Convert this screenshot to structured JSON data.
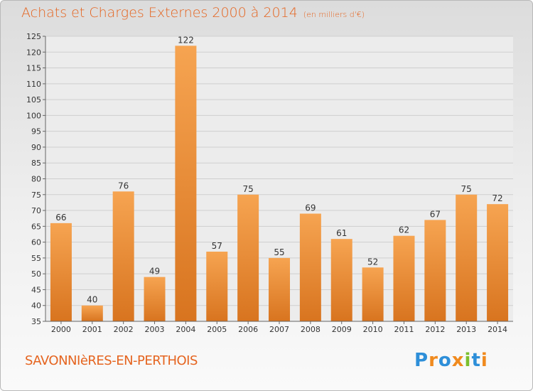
{
  "header": {
    "title": "Achats et Charges Externes 2000 à 2014",
    "unit": "(en milliers d'€)"
  },
  "footer": {
    "city": "SAVONNIèRES-EN-PERTHOIS",
    "logo_text": "Proxiti"
  },
  "colors": {
    "accent": "#e5641f",
    "bar_light": "#f6a451",
    "bar_dark": "#d8741f",
    "logo_blue": "#2e8fd9",
    "logo_orange": "#f08a1e",
    "logo_green": "#7cbf2e"
  },
  "chart_data": {
    "type": "bar",
    "title": "Achats et Charges Externes 2000 à 2014",
    "subtitle": "(en milliers d'€)",
    "categories": [
      "2000",
      "2001",
      "2002",
      "2003",
      "2004",
      "2005",
      "2006",
      "2007",
      "2008",
      "2009",
      "2010",
      "2011",
      "2012",
      "2013",
      "2014"
    ],
    "values": [
      66,
      40,
      76,
      49,
      122,
      57,
      75,
      55,
      69,
      61,
      52,
      62,
      67,
      75,
      72
    ],
    "ylim": [
      35,
      125
    ],
    "yticks": [
      35,
      40,
      45,
      50,
      55,
      60,
      65,
      70,
      75,
      80,
      85,
      90,
      95,
      100,
      105,
      110,
      115,
      120,
      125
    ],
    "grid": true
  }
}
